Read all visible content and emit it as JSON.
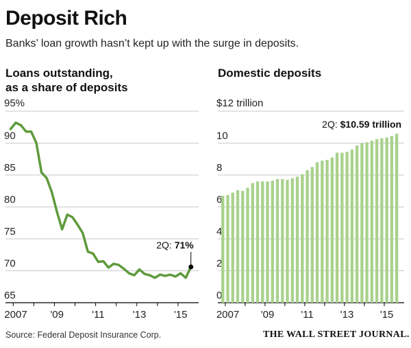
{
  "title": "Deposit Rich",
  "subtitle": "Banks’ loan growth hasn’t kept up with the surge in deposits.",
  "source": "Source: Federal Deposit Insurance Corp.",
  "brand": "THE WALL STREET JOURNAL.",
  "colors": {
    "series": "#5f9a3c",
    "bar": "#a9d28d",
    "grid": "#c9c9c9",
    "axis": "#000000"
  },
  "chart_data": [
    {
      "type": "line",
      "title": "Loans outstanding, as a share of deposits",
      "title_lines": [
        "Loans outstanding,",
        "as a share of deposits"
      ],
      "ylabel": "%",
      "ylim": [
        65,
        95
      ],
      "yticks": [
        65,
        70,
        75,
        80,
        85,
        90,
        95
      ],
      "ytick_labels": [
        "65",
        "70",
        "75",
        "80",
        "85",
        "90",
        "95%"
      ],
      "xlim": [
        2006.5,
        2015.875
      ],
      "xticks": [
        2007,
        2009,
        2011,
        2013,
        2015
      ],
      "xtick_labels": [
        "2007",
        "'09",
        "'11",
        "'13",
        "'15"
      ],
      "x": [
        2006.75,
        2007.0,
        2007.25,
        2007.5,
        2007.75,
        2008.0,
        2008.25,
        2008.5,
        2008.75,
        2009.0,
        2009.25,
        2009.5,
        2009.75,
        2010.0,
        2010.25,
        2010.5,
        2010.75,
        2011.0,
        2011.25,
        2011.5,
        2011.75,
        2012.0,
        2012.25,
        2012.5,
        2012.75,
        2013.0,
        2013.25,
        2013.5,
        2013.75,
        2014.0,
        2014.25,
        2014.5,
        2014.75,
        2015.0,
        2015.25,
        2015.5
      ],
      "values": [
        92.2,
        93.2,
        92.8,
        91.8,
        91.8,
        90.0,
        85.4,
        84.5,
        82.3,
        79.2,
        76.5,
        78.8,
        78.4,
        77.2,
        75.9,
        73.0,
        72.7,
        71.4,
        71.5,
        70.5,
        71.1,
        70.9,
        70.3,
        69.6,
        69.3,
        70.2,
        69.5,
        69.3,
        68.9,
        69.4,
        69.2,
        69.4,
        69.1,
        69.6,
        68.9,
        70.6
      ],
      "annotation": {
        "label": "2Q:",
        "value": "71%",
        "x": 2015.5,
        "y": 70.6
      }
    },
    {
      "type": "bar",
      "title": "Domestic deposits",
      "ylabel": "$ trillion",
      "ylim": [
        0,
        12
      ],
      "yticks": [
        0,
        2,
        4,
        6,
        8,
        10,
        12
      ],
      "ytick_labels": [
        "0",
        "2",
        "4",
        "6",
        "8",
        "10",
        "$12 trillion"
      ],
      "xlim": [
        2006.5,
        2015.875
      ],
      "xticks": [
        2007,
        2009,
        2011,
        2013,
        2015
      ],
      "xtick_labels": [
        "2007",
        "'09",
        "'11",
        "'13",
        "'15"
      ],
      "x": [
        2006.75,
        2007.0,
        2007.25,
        2007.5,
        2007.75,
        2008.0,
        2008.25,
        2008.5,
        2008.75,
        2009.0,
        2009.25,
        2009.5,
        2009.75,
        2010.0,
        2010.25,
        2010.5,
        2010.75,
        2011.0,
        2011.25,
        2011.5,
        2011.75,
        2012.0,
        2012.25,
        2012.5,
        2012.75,
        2013.0,
        2013.25,
        2013.5,
        2013.75,
        2014.0,
        2014.25,
        2014.5,
        2014.75,
        2015.0,
        2015.25,
        2015.5
      ],
      "values": [
        6.7,
        6.75,
        6.9,
        7.05,
        7.0,
        7.2,
        7.5,
        7.6,
        7.6,
        7.6,
        7.65,
        7.75,
        7.75,
        7.7,
        7.8,
        7.9,
        8.05,
        8.3,
        8.5,
        8.8,
        8.9,
        8.95,
        9.1,
        9.4,
        9.4,
        9.45,
        9.6,
        9.85,
        10.0,
        10.05,
        10.15,
        10.25,
        10.3,
        10.35,
        10.45,
        10.59
      ],
      "annotation": {
        "label": "2Q:",
        "value": "$10.59 trillion",
        "x": 2015.5,
        "y": 10.59
      }
    }
  ]
}
